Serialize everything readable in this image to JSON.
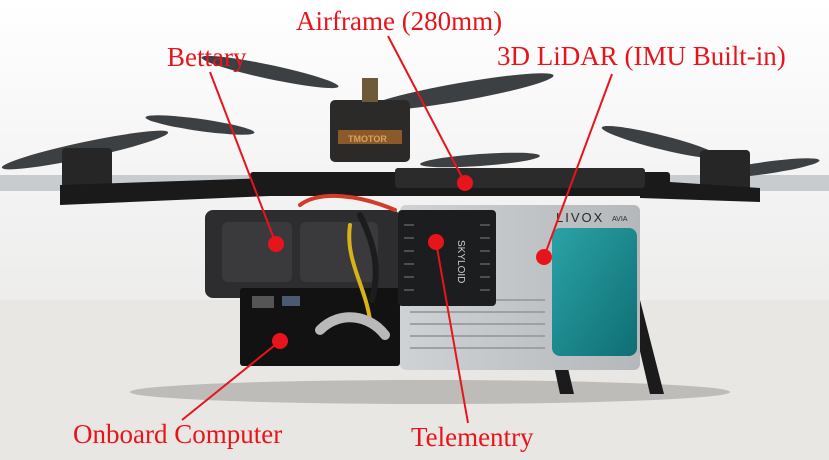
{
  "annotation_color": "#e8141b",
  "labels": {
    "airframe": "Airframe (280mm)",
    "battery": "Bettary",
    "lidar": "3D LiDAR (IMU Built-in)",
    "computer": "Onboard Computer",
    "telemetry": "Telementry"
  },
  "device_text": {
    "lidar_brand": "LIVOX",
    "lidar_model": "AVIA",
    "telemetry_brand": "SKYLOID",
    "motor_brand": "TMOTOR"
  }
}
